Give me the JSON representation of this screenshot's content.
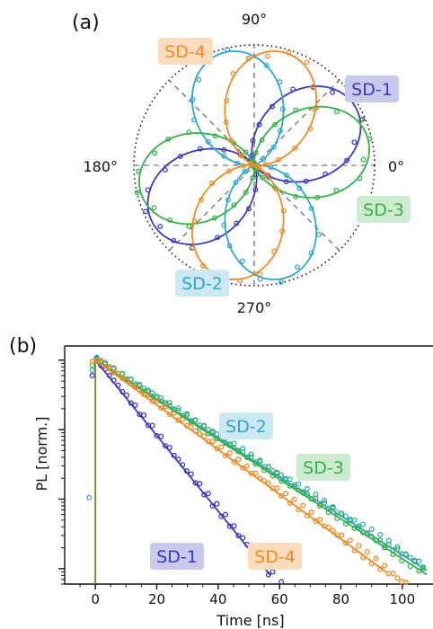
{
  "panel_a": {
    "label": "(a)",
    "angle_labels": {
      "deg0": "0°",
      "deg90": "90°",
      "deg180": "180°",
      "deg270": "270°"
    },
    "tags": {
      "sd1": "SD-1",
      "sd2": "SD-2",
      "sd3": "SD-3",
      "sd4": "SD-4"
    }
  },
  "panel_b": {
    "label": "(b)",
    "xlabel": "Time [ns]",
    "ylabel": "PL [norm.]",
    "x_ticks": [
      "0",
      "20",
      "40",
      "60",
      "80",
      "100"
    ],
    "tags": {
      "sd1": "SD-1",
      "sd2": "SD-2",
      "sd3": "SD-3",
      "sd4": "SD-4"
    }
  },
  "colors": {
    "sd1": "#3a3abf",
    "sd2": "#2ea8c9",
    "sd3": "#36b04a",
    "sd4": "#ee8a22",
    "sd1_bg": "#c9c9ee",
    "sd2_bg": "#cce8f3",
    "sd3_bg": "#cdeccf",
    "sd4_bg": "#fbdcbd",
    "laser": "#8a8a2a"
  },
  "chart_data": [
    {
      "type": "scatter",
      "subtype": "polar",
      "description_axes": "angle in degrees, radius normalized intensity",
      "theta_ticks": [
        0,
        90,
        180,
        270
      ],
      "r_range": [
        0,
        1
      ],
      "series": [
        {
          "name": "SD-1",
          "orientation_deg": 30,
          "contrast": 0.97
        },
        {
          "name": "SD-2",
          "orientation_deg": 105,
          "contrast": 0.97
        },
        {
          "name": "SD-3",
          "orientation_deg": 12,
          "contrast": 0.97
        },
        {
          "name": "SD-4",
          "orientation_deg": 75,
          "contrast": 0.97
        }
      ]
    },
    {
      "type": "scatter",
      "x_range": [
        -10,
        110
      ],
      "y_scale": "log",
      "ylim": [
        0.0006,
        1.6
      ],
      "xlabel": "Time [ns]",
      "ylabel": "PL [norm.]",
      "series": [
        {
          "name": "SD-1",
          "lifetime_ns": 8,
          "fit_end_ns": 57
        },
        {
          "name": "SD-2",
          "lifetime_ns": 15.5,
          "fit_end_ns": 108
        },
        {
          "name": "SD-3",
          "lifetime_ns": 15.2,
          "fit_end_ns": 108
        },
        {
          "name": "SD-4",
          "lifetime_ns": 13.5,
          "fit_end_ns": 95
        }
      ],
      "laser_pulse_ns": 0
    }
  ]
}
